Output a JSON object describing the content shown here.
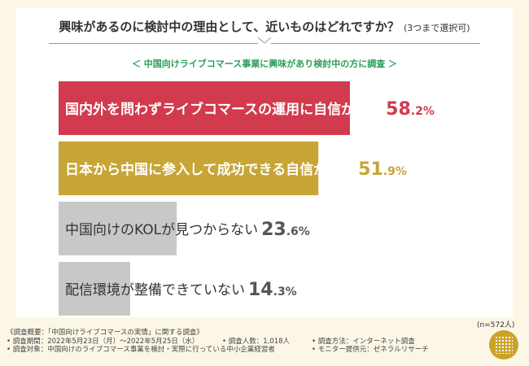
{
  "question": "興味があるのに検討中の理由として、近いものはどれですか？",
  "question_suffix": "(3つまで選択可)",
  "target": "＜ 中国向けライブコマース事業に興味があり検討中の方に調査 ＞",
  "sample": "(n=572人)",
  "colors": {
    "background": "#fbf6e6",
    "bar_red": "#d23a4e",
    "bar_gold": "#c7a536",
    "bar_gray": "#c8c8c8",
    "accent_green": "#2a9d5c",
    "logo": "#c9a227"
  },
  "chart_data": {
    "type": "bar",
    "orientation": "horizontal",
    "categories": [
      "国内外を問わずライブコマースの運用に自信がない",
      "日本から中国に参入して成功できる自信がない",
      "中国向けのKOLが見つからない",
      "配信環境が整備できていない"
    ],
    "values": [
      58.2,
      51.9,
      23.6,
      14.3
    ],
    "value_labels": [
      {
        "int": "58",
        "dec": ".2",
        "unit": "%"
      },
      {
        "int": "51",
        "dec": ".9",
        "unit": "%"
      },
      {
        "int": "23",
        "dec": ".6",
        "unit": "%"
      },
      {
        "int": "14",
        "dec": ".3",
        "unit": "%"
      }
    ],
    "bar_colors": [
      "#d23a4e",
      "#c7a536",
      "#c8c8c8",
      "#c8c8c8"
    ],
    "label_colors": [
      "#ffffff",
      "#ffffff",
      "#333333",
      "#333333"
    ],
    "value_colors": [
      "#d23a4e",
      "#c7a536",
      "#555555",
      "#555555"
    ],
    "xlim": [
      0,
      100
    ],
    "grid": false,
    "legend": "none"
  },
  "footer": {
    "title": "《調査概要：「中国向けライブコマースの実情」に関する調査》",
    "period": "• 調査期間：2022年5月23日（月）〜2022年5月25日（水）",
    "respondents": "• 調査人数：1,018人",
    "method": "• 調査方法：インターネット調査",
    "subjects": "• 調査対象：中国向けのライブコマース事業を検討・実際に行っている中小企業経営者",
    "provider": "• モニター提供元：ゼネラルリサーチ"
  }
}
